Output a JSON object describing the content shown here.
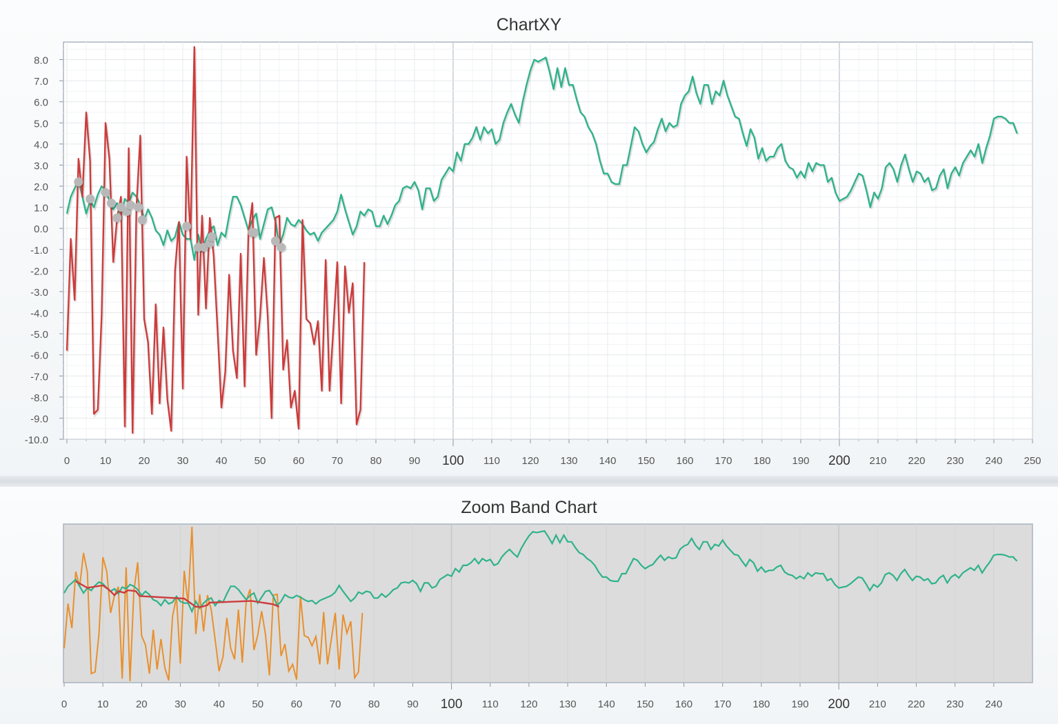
{
  "chart_data": [
    {
      "type": "line",
      "title": "ChartXY",
      "xlim": [
        0,
        250
      ],
      "ylim": [
        -10,
        8.8
      ],
      "grid": true,
      "x_ticks": [
        0,
        10,
        20,
        30,
        40,
        50,
        60,
        70,
        80,
        90,
        100,
        110,
        120,
        130,
        140,
        150,
        160,
        170,
        180,
        190,
        200,
        210,
        220,
        230,
        240,
        250
      ],
      "x_major_ticks": [
        100,
        200
      ],
      "y_ticks": [
        "8.0",
        "7.0",
        "6.0",
        "5.0",
        "4.0",
        "3.0",
        "2.0",
        "1.0",
        "0.0",
        "-1.0",
        "-2.0",
        "-3.0",
        "-4.0",
        "-5.0",
        "-6.0",
        "-7.0",
        "-8.0",
        "-9.0",
        "-10.0"
      ],
      "colors": {
        "green": "#2fb28a",
        "red": "#cd3b3b",
        "marker": "#b8b8b8"
      },
      "series": [
        {
          "color": "#2fb28a",
          "x_start": 0,
          "x_step": 1,
          "values": [
            0.7,
            1.5,
            1.9,
            2.3,
            1.5,
            0.7,
            1.3,
            1.0,
            1.6,
            2.0,
            1.8,
            1.3,
            0.9,
            1.2,
            0.6,
            1.4,
            1.2,
            1.7,
            1.5,
            1.1,
            0.4,
            0.9,
            0.5,
            -0.1,
            -0.3,
            -0.8,
            -0.1,
            -0.6,
            -0.4,
            0.3,
            -0.3,
            -0.5,
            -0.5,
            -1.5,
            -0.3,
            -1.1,
            -0.5,
            -0.1,
            0.1,
            -0.8,
            -0.2,
            -0.4,
            0.6,
            1.5,
            1.5,
            1.1,
            0.5,
            -0.1,
            0.4,
            0.7,
            -0.5,
            0.2,
            0.9,
            1.0,
            0.3,
            -0.8,
            -0.3,
            0.5,
            0.2,
            0.1,
            0.4,
            0.2,
            -0.1,
            -0.3,
            -0.2,
            -0.6,
            -0.2,
            0.0,
            0.2,
            0.4,
            0.8,
            1.6,
            0.9,
            0.3,
            -0.3,
            0.1,
            0.8,
            0.6,
            0.9,
            0.8,
            0.1,
            0.1,
            0.6,
            0.2,
            0.6,
            1.1,
            1.3,
            1.9,
            2.0,
            1.9,
            2.2,
            1.8,
            0.9,
            1.9,
            1.9,
            1.3,
            1.5,
            2.3,
            2.6,
            2.9,
            2.7,
            3.6,
            3.2,
            4.0,
            4.0,
            4.3,
            4.8,
            4.2,
            4.8,
            4.5,
            4.7,
            4.0,
            4.2,
            5.0,
            5.5,
            5.9,
            5.4,
            5.0,
            6.0,
            6.8,
            7.5,
            8.0,
            7.9,
            8.0,
            8.1,
            7.4,
            6.6,
            7.6,
            6.7,
            7.6,
            6.8,
            6.8,
            6.1,
            5.5,
            5.3,
            4.8,
            4.5,
            4.0,
            3.2,
            2.6,
            2.6,
            2.2,
            2.1,
            2.1,
            3.0,
            3.0,
            3.9,
            4.8,
            4.6,
            4.0,
            3.6,
            3.9,
            4.1,
            4.7,
            5.2,
            4.6,
            5.0,
            4.8,
            4.9,
            5.9,
            6.3,
            6.5,
            7.2,
            6.4,
            5.9,
            6.8,
            6.8,
            5.9,
            6.5,
            6.3,
            7.0,
            6.3,
            5.8,
            5.3,
            5.2,
            4.5,
            3.9,
            4.7,
            4.3,
            3.3,
            3.8,
            3.2,
            3.4,
            3.4,
            3.8,
            4.0,
            3.2,
            2.9,
            2.8,
            2.4,
            2.7,
            2.4,
            3.1,
            2.7,
            3.1,
            3.0,
            3.0,
            2.2,
            2.4,
            1.7,
            1.3,
            1.4,
            1.5,
            1.8,
            2.2,
            2.6,
            2.5,
            1.8,
            1.0,
            1.7,
            1.4,
            1.9,
            2.9,
            3.1,
            2.8,
            2.2,
            3.0,
            3.5,
            2.8,
            2.2,
            2.7,
            2.6,
            2.2,
            2.4,
            1.8,
            1.9,
            2.5,
            2.8,
            1.9,
            2.6,
            2.9,
            2.5,
            3.1,
            3.4,
            3.7,
            3.4,
            4.0,
            3.1,
            3.8,
            4.4,
            5.2,
            5.3,
            5.3,
            5.2,
            5.0,
            5.0,
            4.5
          ]
        },
        {
          "color": "#cd3b3b",
          "x_start": 0,
          "x_step": 1,
          "values": [
            -5.8,
            -0.5,
            -3.4,
            3.3,
            1.5,
            5.5,
            3.2,
            -8.8,
            -8.6,
            -4.1,
            5.0,
            3.3,
            -1.6,
            0.5,
            1.5,
            -9.4,
            3.8,
            -9.7,
            1.0,
            4.4,
            -4.3,
            -5.4,
            -8.8,
            -3.6,
            -8.3,
            -4.7,
            -8.1,
            -9.6,
            -2.0,
            0.3,
            -7.6,
            3.4,
            -0.5,
            8.6,
            -4.1,
            0.6,
            -3.8,
            0.5,
            -1.3,
            -4.8,
            -8.5,
            -6.8,
            -2.2,
            -5.8,
            -7.1,
            -1.2,
            -7.5,
            -0.2,
            1.2,
            -6.0,
            -4.2,
            -1.4,
            -4.2,
            -9.0,
            0.5,
            0.6,
            -6.7,
            -5.3,
            -8.5,
            -7.7,
            -9.5,
            0.4,
            -4.3,
            -4.5,
            -5.5,
            -4.4,
            -7.7,
            -1.5,
            -7.7,
            -4.7,
            -1.6,
            -8.3,
            -1.8,
            -4.0,
            -2.6,
            -9.3,
            -8.6,
            -1.6
          ]
        }
      ],
      "markers": [
        {
          "x": 3,
          "y": 2.2
        },
        {
          "x": 6,
          "y": 1.4
        },
        {
          "x": 10,
          "y": 1.7
        },
        {
          "x": 11.5,
          "y": 1.2
        },
        {
          "x": 13,
          "y": 0.5
        },
        {
          "x": 14,
          "y": 1.0
        },
        {
          "x": 15.5,
          "y": 0.8
        },
        {
          "x": 16.5,
          "y": 1.1
        },
        {
          "x": 18.5,
          "y": 1.0
        },
        {
          "x": 19.5,
          "y": 0.4
        },
        {
          "x": 31,
          "y": 0.1
        },
        {
          "x": 34,
          "y": -0.9
        },
        {
          "x": 35.5,
          "y": -0.9
        },
        {
          "x": 37,
          "y": -0.7
        },
        {
          "x": 37.5,
          "y": -0.4
        },
        {
          "x": 48,
          "y": -0.2
        },
        {
          "x": 48.5,
          "y": -0.2
        },
        {
          "x": 54,
          "y": -0.6
        },
        {
          "x": 55.5,
          "y": -0.9
        }
      ]
    },
    {
      "type": "line",
      "title": "Zoom Band Chart",
      "xlim": [
        0,
        250
      ],
      "x_ticks": [
        0,
        10,
        20,
        30,
        40,
        50,
        60,
        70,
        80,
        90,
        100,
        110,
        120,
        130,
        140,
        150,
        160,
        170,
        180,
        190,
        200,
        210,
        220,
        230,
        240
      ],
      "x_major_ticks": [
        100,
        200
      ],
      "colors": {
        "green": "#2fb28a",
        "orange": "#e8902e",
        "red": "#cd3b3b",
        "band": "#dcdcdc"
      },
      "series": [
        {
          "color": "#2fb28a",
          "source": "ChartXY green line"
        },
        {
          "color": "#e8902e",
          "source": "ChartXY red line"
        },
        {
          "color": "#cd3b3b",
          "source": "ChartXY marker points"
        }
      ]
    }
  ]
}
